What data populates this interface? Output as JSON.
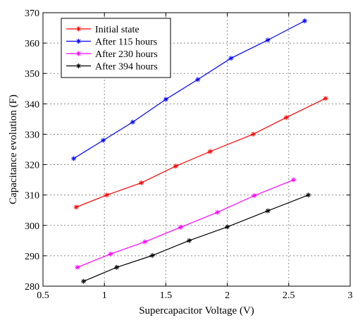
{
  "chart_data": {
    "type": "line",
    "xlabel": "Supercapacitor Voltage (V)",
    "ylabel": "Capacitance evolution (F)",
    "xlim": [
      0.5,
      3
    ],
    "ylim": [
      280,
      370
    ],
    "xticks": [
      0.5,
      1,
      1.5,
      2,
      2.5,
      3
    ],
    "xtick_labels": [
      "0.5",
      "1",
      "1.5",
      "2",
      "2.5",
      "3"
    ],
    "yticks": [
      280,
      290,
      300,
      310,
      320,
      330,
      340,
      350,
      360,
      370
    ],
    "ytick_labels": [
      "280",
      "290",
      "300",
      "310",
      "320",
      "330",
      "340",
      "350",
      "360",
      "370"
    ],
    "grid": true,
    "legend_position": "top-left",
    "series": [
      {
        "name": "Initial state",
        "color": "#ff0000",
        "x": [
          0.77,
          1.02,
          1.3,
          1.58,
          1.86,
          2.21,
          2.48,
          2.8
        ],
        "y": [
          306,
          310,
          314,
          319.5,
          324.3,
          330,
          335.5,
          341.8
        ]
      },
      {
        "name": "After 115 hours",
        "color": "#0000ff",
        "x": [
          0.75,
          0.99,
          1.23,
          1.5,
          1.76,
          2.03,
          2.33,
          2.63
        ],
        "y": [
          322,
          328,
          334,
          341.5,
          348,
          355,
          361,
          367.3
        ]
      },
      {
        "name": "After 230 hours",
        "color": "#ff00ff",
        "x": [
          0.78,
          1.05,
          1.33,
          1.62,
          1.92,
          2.22,
          2.54
        ],
        "y": [
          286.2,
          290.6,
          294.6,
          299.4,
          304.3,
          309.8,
          315
        ]
      },
      {
        "name": "After 394 hours",
        "color": "#000000",
        "x": [
          0.83,
          1.1,
          1.39,
          1.69,
          2.0,
          2.33,
          2.66
        ],
        "y": [
          281.6,
          286.2,
          290.1,
          295,
          299.5,
          304.8,
          310
        ]
      }
    ]
  }
}
